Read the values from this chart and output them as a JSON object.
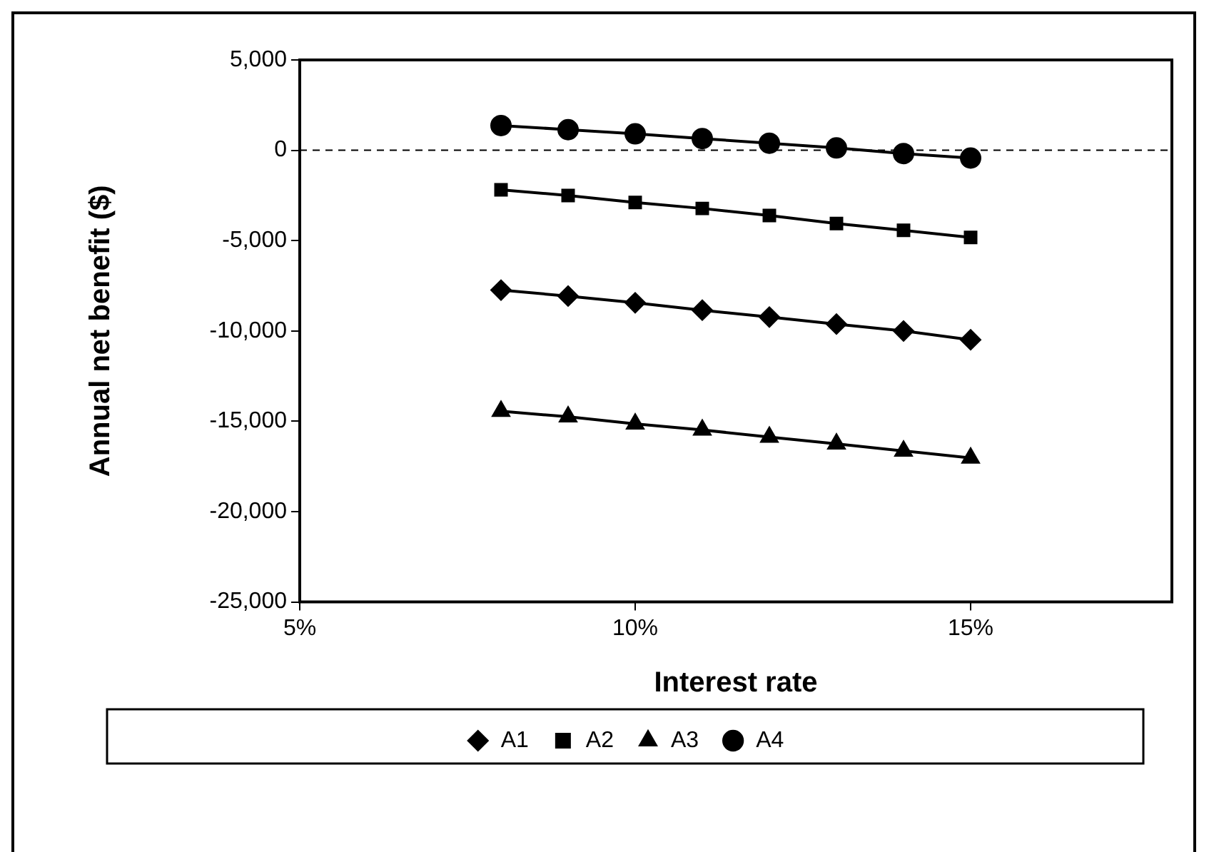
{
  "chart_data": {
    "type": "line",
    "xlabel": "Interest rate",
    "ylabel": "Annual net benefit ($)",
    "x": [
      8,
      9,
      10,
      11,
      12,
      13,
      14,
      15
    ],
    "series": [
      {
        "name": "A1",
        "color": "#000000",
        "marker": "diamond",
        "values": [
          -7740,
          -8070,
          -8440,
          -8850,
          -9230,
          -9620,
          -10000,
          -10490
        ]
      },
      {
        "name": "A2",
        "color": "#000000",
        "marker": "square",
        "values": [
          -2190,
          -2500,
          -2890,
          -3220,
          -3610,
          -4050,
          -4430,
          -4820
        ]
      },
      {
        "name": "A3",
        "color": "#000000",
        "marker": "triangle",
        "values": [
          -14440,
          -14750,
          -15140,
          -15480,
          -15870,
          -16250,
          -16640,
          -17030
        ]
      },
      {
        "name": "A4",
        "color": "#000000",
        "marker": "circle",
        "values": [
          1370,
          1140,
          910,
          650,
          390,
          130,
          -180,
          -430
        ]
      }
    ],
    "xlim": [
      5,
      18
    ],
    "xticks": [
      {
        "value": 5,
        "label": "5%"
      },
      {
        "value": 10,
        "label": "10%"
      },
      {
        "value": 15,
        "label": "15%"
      }
    ],
    "ylim": [
      -25000,
      5000
    ],
    "yticks": [
      {
        "value": -25000,
        "label": "-25,000"
      },
      {
        "value": -20000,
        "label": "-20,000"
      },
      {
        "value": -15000,
        "label": "-15,000"
      },
      {
        "value": -10000,
        "label": "-10,000"
      },
      {
        "value": -5000,
        "label": "-5,000"
      },
      {
        "value": 0,
        "label": "0"
      },
      {
        "value": 5000,
        "label": "5,000"
      }
    ],
    "ref_lines": [
      {
        "axis": "y",
        "value": 0,
        "line_style": "dashed",
        "color": "#000000"
      }
    ],
    "grid": false,
    "legend": "bottom",
    "line_style": "solid"
  }
}
